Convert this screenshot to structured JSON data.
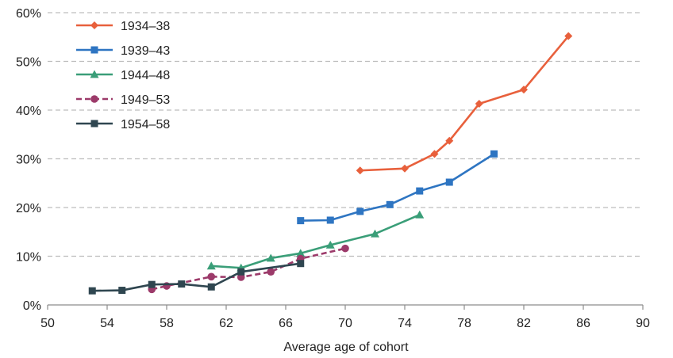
{
  "chart_data": {
    "type": "line",
    "title": "",
    "xlabel": "Average age of cohort",
    "ylabel": "",
    "xlim": [
      50,
      90
    ],
    "ylim": [
      0,
      60
    ],
    "x_ticks": [
      "50",
      "54",
      "58",
      "62",
      "66",
      "70",
      "74",
      "78",
      "82",
      "86",
      "90"
    ],
    "y_ticks": [
      "0%",
      "10%",
      "20%",
      "30%",
      "40%",
      "50%",
      "60%"
    ],
    "grid": "horizontal dashed",
    "legend_position": "top-left",
    "series": [
      {
        "name": "1934–38",
        "color": "#E8603C",
        "marker": "diamond",
        "dash": "solid",
        "points": [
          [
            71,
            27.6
          ],
          [
            74,
            28.0
          ],
          [
            76,
            31.0
          ],
          [
            77,
            33.7
          ],
          [
            79,
            41.3
          ],
          [
            82,
            44.2
          ],
          [
            85,
            55.2
          ]
        ]
      },
      {
        "name": "1939–43",
        "color": "#2E75C2",
        "marker": "square",
        "dash": "solid",
        "points": [
          [
            67,
            17.3
          ],
          [
            69,
            17.4
          ],
          [
            71,
            19.2
          ],
          [
            73,
            20.6
          ],
          [
            75,
            23.4
          ],
          [
            77,
            25.2
          ],
          [
            80,
            31.0
          ]
        ]
      },
      {
        "name": "1944–48",
        "color": "#3A9E78",
        "marker": "triangle",
        "dash": "solid",
        "points": [
          [
            61,
            8.0
          ],
          [
            63,
            7.6
          ],
          [
            65,
            9.6
          ],
          [
            67,
            10.6
          ],
          [
            69,
            12.3
          ],
          [
            72,
            14.6
          ],
          [
            75,
            18.5
          ]
        ]
      },
      {
        "name": "1949–53",
        "color": "#9C3A6A",
        "marker": "circle",
        "dash": "dashed",
        "points": [
          [
            57,
            3.2
          ],
          [
            58,
            3.9
          ],
          [
            61,
            5.8
          ],
          [
            63,
            5.7
          ],
          [
            65,
            6.8
          ],
          [
            67,
            9.5
          ],
          [
            70,
            11.6
          ]
        ]
      },
      {
        "name": "1954–58",
        "color": "#2F4650",
        "marker": "square",
        "dash": "solid",
        "points": [
          [
            53,
            2.9
          ],
          [
            55,
            3.0
          ],
          [
            57,
            4.2
          ],
          [
            59,
            4.3
          ],
          [
            61,
            3.7
          ],
          [
            63,
            6.8
          ],
          [
            67,
            8.5
          ]
        ]
      }
    ]
  }
}
